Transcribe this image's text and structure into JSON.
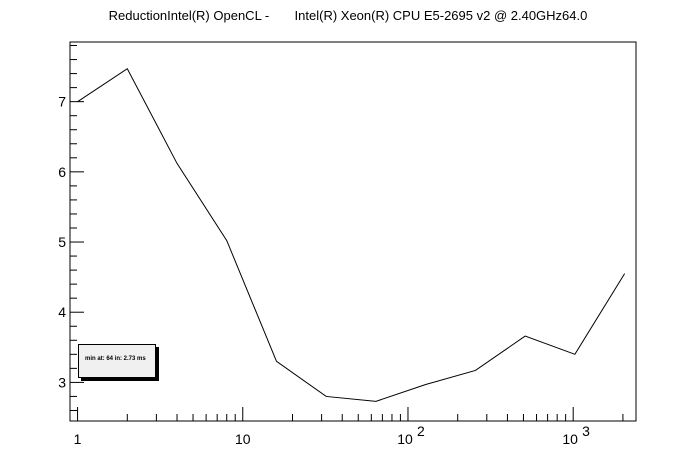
{
  "title": "ReductionIntel(R) OpenCL -       Intel(R) Xeon(R) CPU E5-2695 v2 @ 2.40GHz64.0",
  "legend": {
    "text": "min at: 64 in: 2.73 ms"
  },
  "chart_data": {
    "type": "line",
    "title": "ReductionIntel(R) OpenCL -       Intel(R) Xeon(R) CPU E5-2695 v2 @ 2.40GHz64.0",
    "xscale": "log",
    "xlim": [
      0.9,
      2400
    ],
    "ylim": [
      2.45,
      7.85
    ],
    "x_tick_labels": [
      {
        "value": 1,
        "label": "1",
        "base": "1",
        "exp": ""
      },
      {
        "value": 10,
        "label": "10",
        "base": "10",
        "exp": ""
      },
      {
        "value": 100,
        "label": "10^2",
        "base": "10",
        "exp": "2"
      },
      {
        "value": 1000,
        "label": "10^3",
        "base": "10",
        "exp": "3"
      }
    ],
    "y_tick_labels": [
      3,
      4,
      5,
      6,
      7
    ],
    "grid": false,
    "legend_position": "bottom-left",
    "series": [
      {
        "x": [
          1,
          2,
          4,
          8,
          16,
          32,
          64,
          128,
          256,
          512,
          1024,
          2048
        ],
        "y": [
          7.0,
          7.47,
          6.12,
          5.02,
          3.3,
          2.8,
          2.73,
          2.97,
          3.17,
          3.66,
          3.4,
          4.55
        ]
      }
    ]
  }
}
